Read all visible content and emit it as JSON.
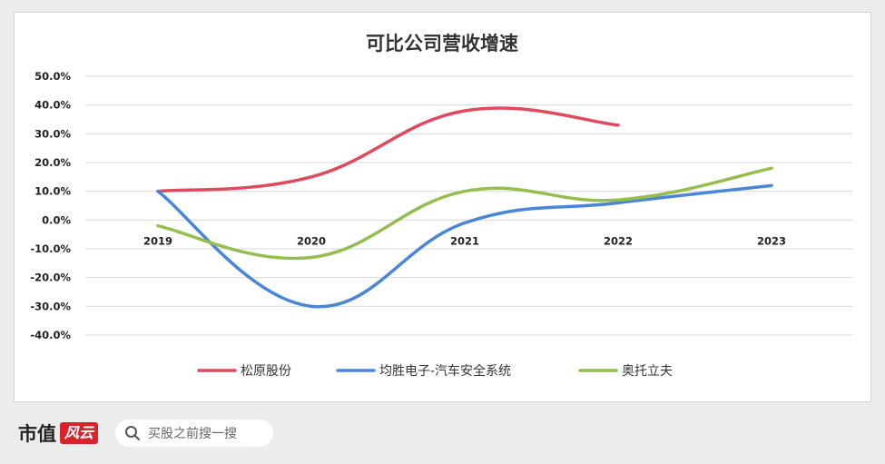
{
  "chart_data": {
    "type": "line",
    "title": "可比公司营收增速",
    "categories": [
      "2019",
      "2020",
      "2021",
      "2022",
      "2023"
    ],
    "y_tick_labels": [
      "50.0%",
      "40.0%",
      "30.0%",
      "20.0%",
      "10.0%",
      "0.0%",
      "-10.0%",
      "-20.0%",
      "-30.0%",
      "-40.0%"
    ],
    "ylim": [
      -40,
      50
    ],
    "y_unit": "%",
    "grid": true,
    "legend_position": "bottom",
    "smooth": true,
    "series": [
      {
        "name": "松原股份",
        "color": "#e04a5f",
        "values": [
          10,
          15,
          38,
          33,
          null
        ]
      },
      {
        "name": "均胜电子-汽车安全系统",
        "color": "#4a86d8",
        "values": [
          10,
          -30,
          -1,
          6,
          12
        ]
      },
      {
        "name": "奥托立夫",
        "color": "#96bd4f",
        "values": [
          -2,
          -13,
          10,
          7,
          18
        ]
      }
    ]
  },
  "watermark": "市值风云",
  "footer": {
    "brand_text": "市值",
    "brand_badge": "风云",
    "search_placeholder": "买股之前搜一搜"
  }
}
